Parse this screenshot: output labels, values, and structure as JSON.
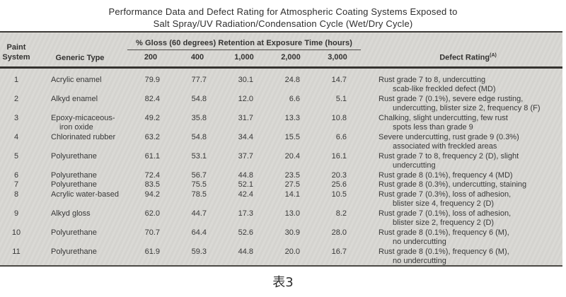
{
  "title": {
    "line1": "Performance Data and Defect Rating for Atmospheric Coating Systems Exposed to",
    "line2": "Salt Spray/UV Radiation/Condensation Cycle (Wet/Dry Cycle)"
  },
  "table": {
    "column_group_header": "% Gloss (60 degrees) Retention at Exposure Time (hours)",
    "headers": {
      "paint_system_line1": "Paint",
      "paint_system_line2": "System",
      "generic_type": "Generic Type",
      "exposure_times": [
        "200",
        "400",
        "1,000",
        "2,000",
        "3,000"
      ],
      "defect_rating": "Defect Rating",
      "defect_rating_note": "(A)"
    },
    "rows": [
      {
        "system": "1",
        "generic_type": [
          "Acrylic enamel"
        ],
        "gloss": [
          "79.9",
          "77.7",
          "30.1",
          "24.8",
          "14.7"
        ],
        "defect": [
          "Rust grade 7 to 8, undercutting",
          "scab-like freckled defect (MD)"
        ]
      },
      {
        "system": "2",
        "generic_type": [
          "Alkyd enamel"
        ],
        "gloss": [
          "82.4",
          "54.8",
          "12.0",
          "6.6",
          "5.1"
        ],
        "defect": [
          "Rust grade 7 (0.1%), severe edge rusting,",
          "undercutting, blister size 2, frequency 8 (F)"
        ]
      },
      {
        "system": "3",
        "generic_type": [
          "Epoxy-micaceous-",
          "iron oxide"
        ],
        "gloss": [
          "49.2",
          "35.8",
          "31.7",
          "13.3",
          "10.8"
        ],
        "defect": [
          "Chalking, slight undercutting, few rust",
          "spots less than grade 9"
        ]
      },
      {
        "system": "4",
        "generic_type": [
          "Chlorinated rubber"
        ],
        "gloss": [
          "63.2",
          "54.8",
          "34.4",
          "15.5",
          "6.6"
        ],
        "defect": [
          "Severe undercutting, rust grade 9 (0.3%)",
          "associated with freckled areas"
        ]
      },
      {
        "system": "5",
        "generic_type": [
          "Polyurethane"
        ],
        "gloss": [
          "61.1",
          "53.1",
          "37.7",
          "20.4",
          "16.1"
        ],
        "defect": [
          "Rust grade 7 to 8, frequency 2 (D), slight",
          "undercutting"
        ]
      },
      {
        "system": "6",
        "generic_type": [
          "Polyurethane"
        ],
        "gloss": [
          "72.4",
          "56.7",
          "44.8",
          "23.5",
          "20.3"
        ],
        "defect": [
          "Rust grade 8 (0.1%), frequency 4 (MD)"
        ]
      },
      {
        "system": "7",
        "generic_type": [
          "Polyurethane"
        ],
        "gloss": [
          "83.5",
          "75.5",
          "52.1",
          "27.5",
          "25.6"
        ],
        "defect": [
          "Rust grade 8 (0.3%), undercutting, staining"
        ]
      },
      {
        "system": "8",
        "generic_type": [
          "Acrylic water-based"
        ],
        "gloss": [
          "94.2",
          "78.5",
          "42.4",
          "14.1",
          "10.5"
        ],
        "defect": [
          "Rust grade 7 (0.3%), loss of adhesion,",
          "blister size 4, frequency 2 (D)"
        ]
      },
      {
        "system": "9",
        "generic_type": [
          "Alkyd gloss"
        ],
        "gloss": [
          "62.0",
          "44.7",
          "17.3",
          "13.0",
          "8.2"
        ],
        "defect": [
          "Rust grade 7 (0.1%), loss of adhesion,",
          "blister size 2, frequency 2 (D)"
        ]
      },
      {
        "system": "10",
        "generic_type": [
          "Polyurethane"
        ],
        "gloss": [
          "70.7",
          "64.4",
          "52.6",
          "30.9",
          "28.0"
        ],
        "defect": [
          "Rust grade 8 (0.1%), frequency 6 (M),",
          "no undercutting"
        ]
      },
      {
        "system": "11",
        "generic_type": [
          "Polyurethane"
        ],
        "gloss": [
          "61.9",
          "59.3",
          "44.8",
          "20.0",
          "16.7"
        ],
        "defect": [
          "Rust grade 8 (0.1%), frequency 6 (M),",
          "no undercutting"
        ]
      }
    ]
  },
  "caption": "表3",
  "colors": {
    "page_bg": "#ffffff",
    "table_bg": "#d8d7d3",
    "text": "#3a3a3a",
    "rule": "#34322f"
  }
}
